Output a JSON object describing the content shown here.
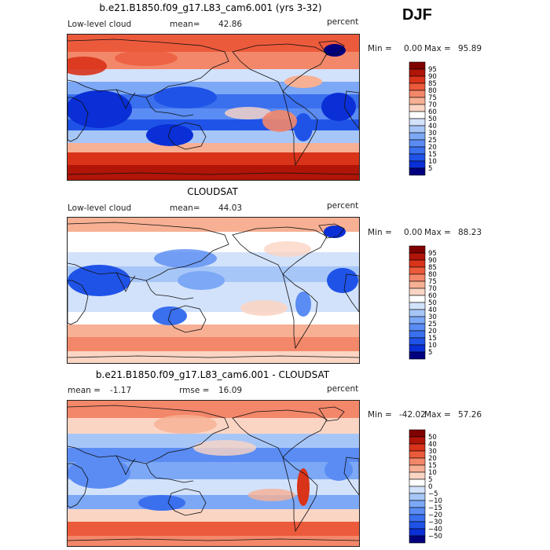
{
  "season": "DJF",
  "panels": [
    {
      "title": "b.e21.B1850.f09_g17.L83_cam6.001 (yrs 3-32)",
      "left_label": "Low-level cloud",
      "mean_label": "mean=",
      "mean_value": "42.86",
      "units": "percent",
      "min_label": "Min =",
      "min_value": "0.00",
      "max_label": "Max =",
      "max_value": "95.89"
    },
    {
      "title": "CLOUDSAT",
      "left_label": "Low-level cloud",
      "mean_label": "mean=",
      "mean_value": "44.03",
      "units": "percent",
      "min_label": "Min =",
      "min_value": "0.00",
      "max_label": "Max =",
      "max_value": "88.23"
    },
    {
      "title": "b.e21.B1850.f09_g17.L83_cam6.001 - CLOUDSAT",
      "left_label": "mean =",
      "mean_value": "-1.17",
      "rmse_label": "rmse =",
      "rmse_value": "16.09",
      "units": "percent",
      "min_label": "Min =",
      "min_value": "-42.02",
      "max_label": "Max =",
      "max_value": "57.26"
    }
  ],
  "chart_data": [
    {
      "type": "heatmap",
      "title": "b.e21.B1850.f09_g17.L83_cam6.001 (yrs 3-32)",
      "variable": "Low-level cloud",
      "units": "percent",
      "mean": 42.86,
      "min": 0.0,
      "max": 95.89,
      "colorbar_levels": [
        5,
        10,
        15,
        20,
        25,
        30,
        40,
        50,
        60,
        70,
        75,
        80,
        85,
        90,
        95
      ],
      "colorbar_colors": [
        "#00007f",
        "#0a2fd6",
        "#1f53e8",
        "#3a6fee",
        "#5a8cf3",
        "#7ca8f6",
        "#a7c6f8",
        "#d2e2fb",
        "#ffffff",
        "#fbd5c4",
        "#f7b094",
        "#f3876a",
        "#ec5a3c",
        "#d9331a",
        "#b01508",
        "#800000"
      ]
    },
    {
      "type": "heatmap",
      "title": "CLOUDSAT",
      "variable": "Low-level cloud",
      "units": "percent",
      "mean": 44.03,
      "min": 0.0,
      "max": 88.23,
      "colorbar_levels": [
        5,
        10,
        15,
        20,
        25,
        30,
        40,
        50,
        60,
        70,
        75,
        80,
        85,
        90,
        95
      ],
      "colorbar_colors": [
        "#00007f",
        "#0a2fd6",
        "#1f53e8",
        "#3a6fee",
        "#5a8cf3",
        "#7ca8f6",
        "#a7c6f8",
        "#d2e2fb",
        "#ffffff",
        "#fbd5c4",
        "#f7b094",
        "#f3876a",
        "#ec5a3c",
        "#d9331a",
        "#b01508",
        "#800000"
      ]
    },
    {
      "type": "heatmap",
      "title": "b.e21.B1850.f09_g17.L83_cam6.001 - CLOUDSAT",
      "units": "percent",
      "mean": -1.17,
      "rmse": 16.09,
      "min": -42.02,
      "max": 57.26,
      "colorbar_levels": [
        -50,
        -40,
        -30,
        -20,
        -15,
        -10,
        -5,
        0,
        5,
        10,
        15,
        20,
        30,
        40,
        50
      ],
      "colorbar_colors": [
        "#00007f",
        "#0a2fd6",
        "#1f53e8",
        "#3a6fee",
        "#5a8cf3",
        "#7ca8f6",
        "#a7c6f8",
        "#d2e2fb",
        "#ffffff",
        "#fbd5c4",
        "#f7b094",
        "#f3876a",
        "#ec5a3c",
        "#d9331a",
        "#b01508",
        "#800000"
      ]
    }
  ]
}
